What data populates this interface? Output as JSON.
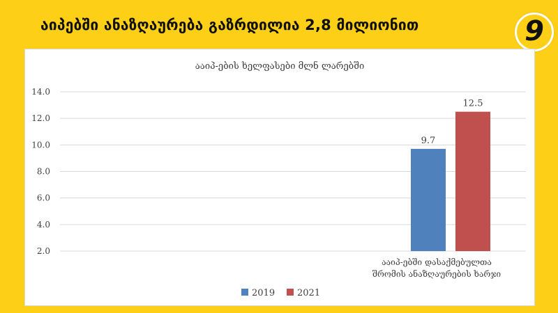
{
  "header": {
    "title": "აიპებში ანაზღაურება გაზრდილია 2,8 მილიონით",
    "slide_number": "9"
  },
  "colors": {
    "background": "#FDD017",
    "series_2019": "#4F81BD",
    "series_2021": "#C0504D"
  },
  "chart_data": {
    "type": "bar",
    "title": "ააიპ-ების ხელფასები მლნ ლარებში",
    "categories": [
      "ააიპ-ებში დასაქმებულთა შრომის ანაზღაურების ხარჯი"
    ],
    "category_lines": [
      "ააიპ-ებში დასაქმებულთა",
      "შრომის ანაზღაურების ხარჯი"
    ],
    "series": [
      {
        "name": "2019",
        "values": [
          9.7
        ],
        "data_labels": [
          "9.7"
        ]
      },
      {
        "name": "2021",
        "values": [
          12.5
        ],
        "data_labels": [
          "12.5"
        ]
      }
    ],
    "ylim": [
      2.0,
      14.0
    ],
    "yticks": [
      2.0,
      4.0,
      6.0,
      8.0,
      10.0,
      12.0,
      14.0
    ],
    "ytick_labels": [
      "2.0",
      "4.0",
      "6.0",
      "8.0",
      "10.0",
      "12.0",
      "14.0"
    ],
    "grid": true,
    "legend_position": "bottom",
    "xlabel": "",
    "ylabel": ""
  }
}
